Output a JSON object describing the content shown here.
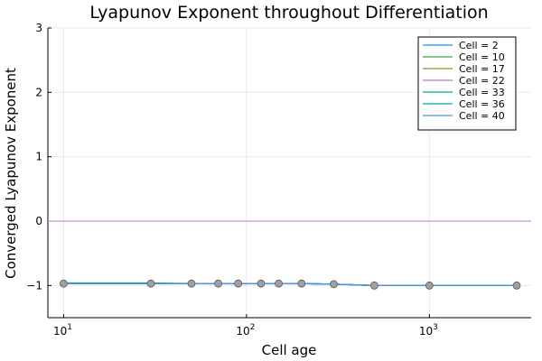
{
  "chart_data": {
    "type": "line",
    "title": "Lyapunov Exponent throughout Differentiation",
    "xlabel": "Cell age",
    "ylabel": "Converged Lyapunov Exponent",
    "xscale": "log10",
    "xlim": [
      8.2,
      3600
    ],
    "ylim": [
      -1.5,
      3
    ],
    "yticks": [
      -1,
      0,
      1,
      2,
      3
    ],
    "xticks": [
      10,
      100,
      1000
    ],
    "xtick_labels": [
      {
        "base": "10",
        "exp": "1"
      },
      {
        "base": "10",
        "exp": "2"
      },
      {
        "base": "10",
        "exp": "3"
      }
    ],
    "grid": true,
    "legend_position": "top-right",
    "zero_line": {
      "y": 0,
      "color": "#c271d2"
    },
    "x": [
      10,
      30,
      50,
      70,
      90,
      120,
      150,
      200,
      300,
      500,
      1000,
      3000
    ],
    "series": [
      {
        "name": "Cell = 2",
        "color": "#009af9",
        "values": [
          -0.97,
          -0.97,
          -0.97,
          -0.97,
          -0.97,
          -0.97,
          -0.97,
          -0.97,
          -0.98,
          -1.0,
          -1.0,
          -1.0
        ]
      },
      {
        "name": "Cell = 10",
        "color": "#3da44d",
        "values": [
          -0.97,
          -0.97,
          -0.97,
          -0.97,
          -0.97,
          -0.97,
          -0.97,
          -0.97,
          -0.98,
          -1.0,
          -1.0,
          -1.0
        ]
      },
      {
        "name": "Cell = 17",
        "color": "#8e971e",
        "values": [
          -0.97,
          -0.97,
          -0.97,
          -0.97,
          -0.97,
          -0.97,
          -0.97,
          -0.97,
          -0.98,
          -1.0,
          -1.0,
          -1.0
        ]
      },
      {
        "name": "Cell = 22",
        "color": "#c271d2",
        "values": [
          -0.97,
          -0.97,
          -0.97,
          -0.97,
          -0.97,
          -0.97,
          -0.97,
          -0.97,
          -0.98,
          -1.0,
          -1.0,
          -1.0
        ]
      },
      {
        "name": "Cell = 33",
        "color": "#00a98d",
        "values": [
          -0.96,
          -0.96,
          -0.97,
          -0.97,
          -0.97,
          -0.97,
          -0.97,
          -0.97,
          -0.98,
          -1.0,
          -1.0,
          -1.0
        ]
      },
      {
        "name": "Cell = 36",
        "color": "#00a8a9",
        "values": [
          -0.97,
          -0.97,
          -0.97,
          -0.97,
          -0.97,
          -0.97,
          -0.97,
          -0.97,
          -0.98,
          -1.0,
          -1.0,
          -1.0
        ]
      },
      {
        "name": "Cell = 40",
        "color": "#4c90f0",
        "values": [
          -0.97,
          -0.97,
          -0.97,
          -0.97,
          -0.97,
          -0.97,
          -0.97,
          -0.97,
          -0.98,
          -1.0,
          -1.0,
          -1.0
        ]
      }
    ],
    "markers": {
      "x": [
        10,
        30,
        50,
        70,
        90,
        120,
        150,
        200,
        300,
        500,
        1000,
        3000
      ],
      "y": [
        -0.97,
        -0.97,
        -0.97,
        -0.97,
        -0.97,
        -0.97,
        -0.97,
        -0.97,
        -0.98,
        -1.0,
        -1.0,
        -1.0
      ],
      "color": "#a0a0a0"
    }
  }
}
